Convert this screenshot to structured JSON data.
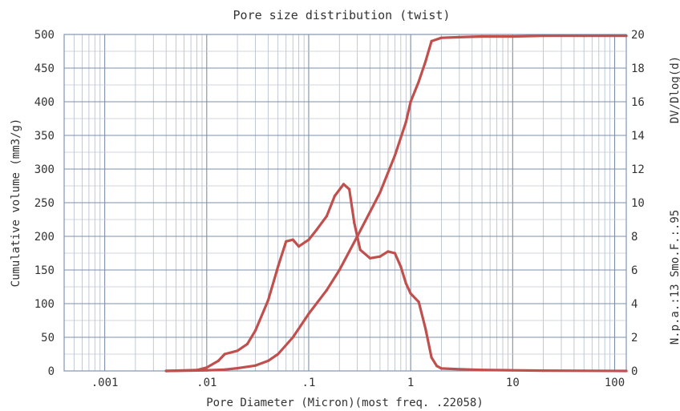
{
  "chart_data": {
    "type": "line",
    "title": "Pore size distribution (twist)",
    "xlabel": "Pore Diameter (Micron)(most freq. .22058)",
    "ylabel": "Cumulative volume (mm3/g)",
    "y2label": "DV/Dlog(d)",
    "side_annotation": "N.p.a.:13 Smo.F.:.95",
    "x_scale": "log",
    "xlim": [
      0.0004,
      130
    ],
    "ylim": [
      0,
      500
    ],
    "y2lim": [
      0,
      20
    ],
    "x_tick_labels": [
      ".001",
      ".01",
      ".1",
      "1",
      "10",
      "100"
    ],
    "y_tick_labels": [
      "0",
      "50",
      "100",
      "150",
      "200",
      "250",
      "300",
      "350",
      "400",
      "450",
      "500"
    ],
    "y2_tick_labels": [
      "0",
      "2",
      "4",
      "6",
      "8",
      "10",
      "12",
      "14",
      "16",
      "18",
      "20"
    ],
    "grid": true,
    "series_color": "#c0504d",
    "series": [
      {
        "axis": "left",
        "x": [
          0.004,
          0.01,
          0.015,
          0.02,
          0.03,
          0.04,
          0.05,
          0.07,
          0.1,
          0.15,
          0.2,
          0.3,
          0.5,
          0.7,
          0.9,
          1.0,
          1.2,
          1.4,
          1.6,
          2,
          3,
          5,
          10,
          20,
          50,
          130
        ],
        "y": [
          0,
          1,
          2,
          4,
          8,
          15,
          25,
          50,
          85,
          120,
          150,
          200,
          265,
          320,
          370,
          400,
          430,
          460,
          490,
          495,
          496,
          497,
          497,
          498,
          498,
          498
        ]
      },
      {
        "axis": "right",
        "x": [
          0.004,
          0.008,
          0.01,
          0.013,
          0.015,
          0.02,
          0.025,
          0.03,
          0.04,
          0.05,
          0.06,
          0.07,
          0.08,
          0.1,
          0.12,
          0.15,
          0.18,
          0.22,
          0.25,
          0.28,
          0.32,
          0.4,
          0.5,
          0.6,
          0.7,
          0.8,
          0.9,
          1.0,
          1.2,
          1.4,
          1.6,
          1.8,
          2,
          3,
          5,
          10,
          20,
          50,
          130
        ],
        "y": [
          0,
          0.05,
          0.2,
          0.6,
          1.0,
          1.2,
          1.6,
          2.4,
          4.2,
          6.2,
          7.7,
          7.8,
          7.4,
          7.8,
          8.4,
          9.2,
          10.4,
          11.1,
          10.8,
          8.8,
          7.2,
          6.7,
          6.8,
          7.1,
          7.0,
          6.2,
          5.2,
          4.6,
          4.1,
          2.5,
          0.8,
          0.3,
          0.15,
          0.1,
          0.06,
          0.04,
          0.02,
          0.01,
          0
        ]
      }
    ]
  }
}
